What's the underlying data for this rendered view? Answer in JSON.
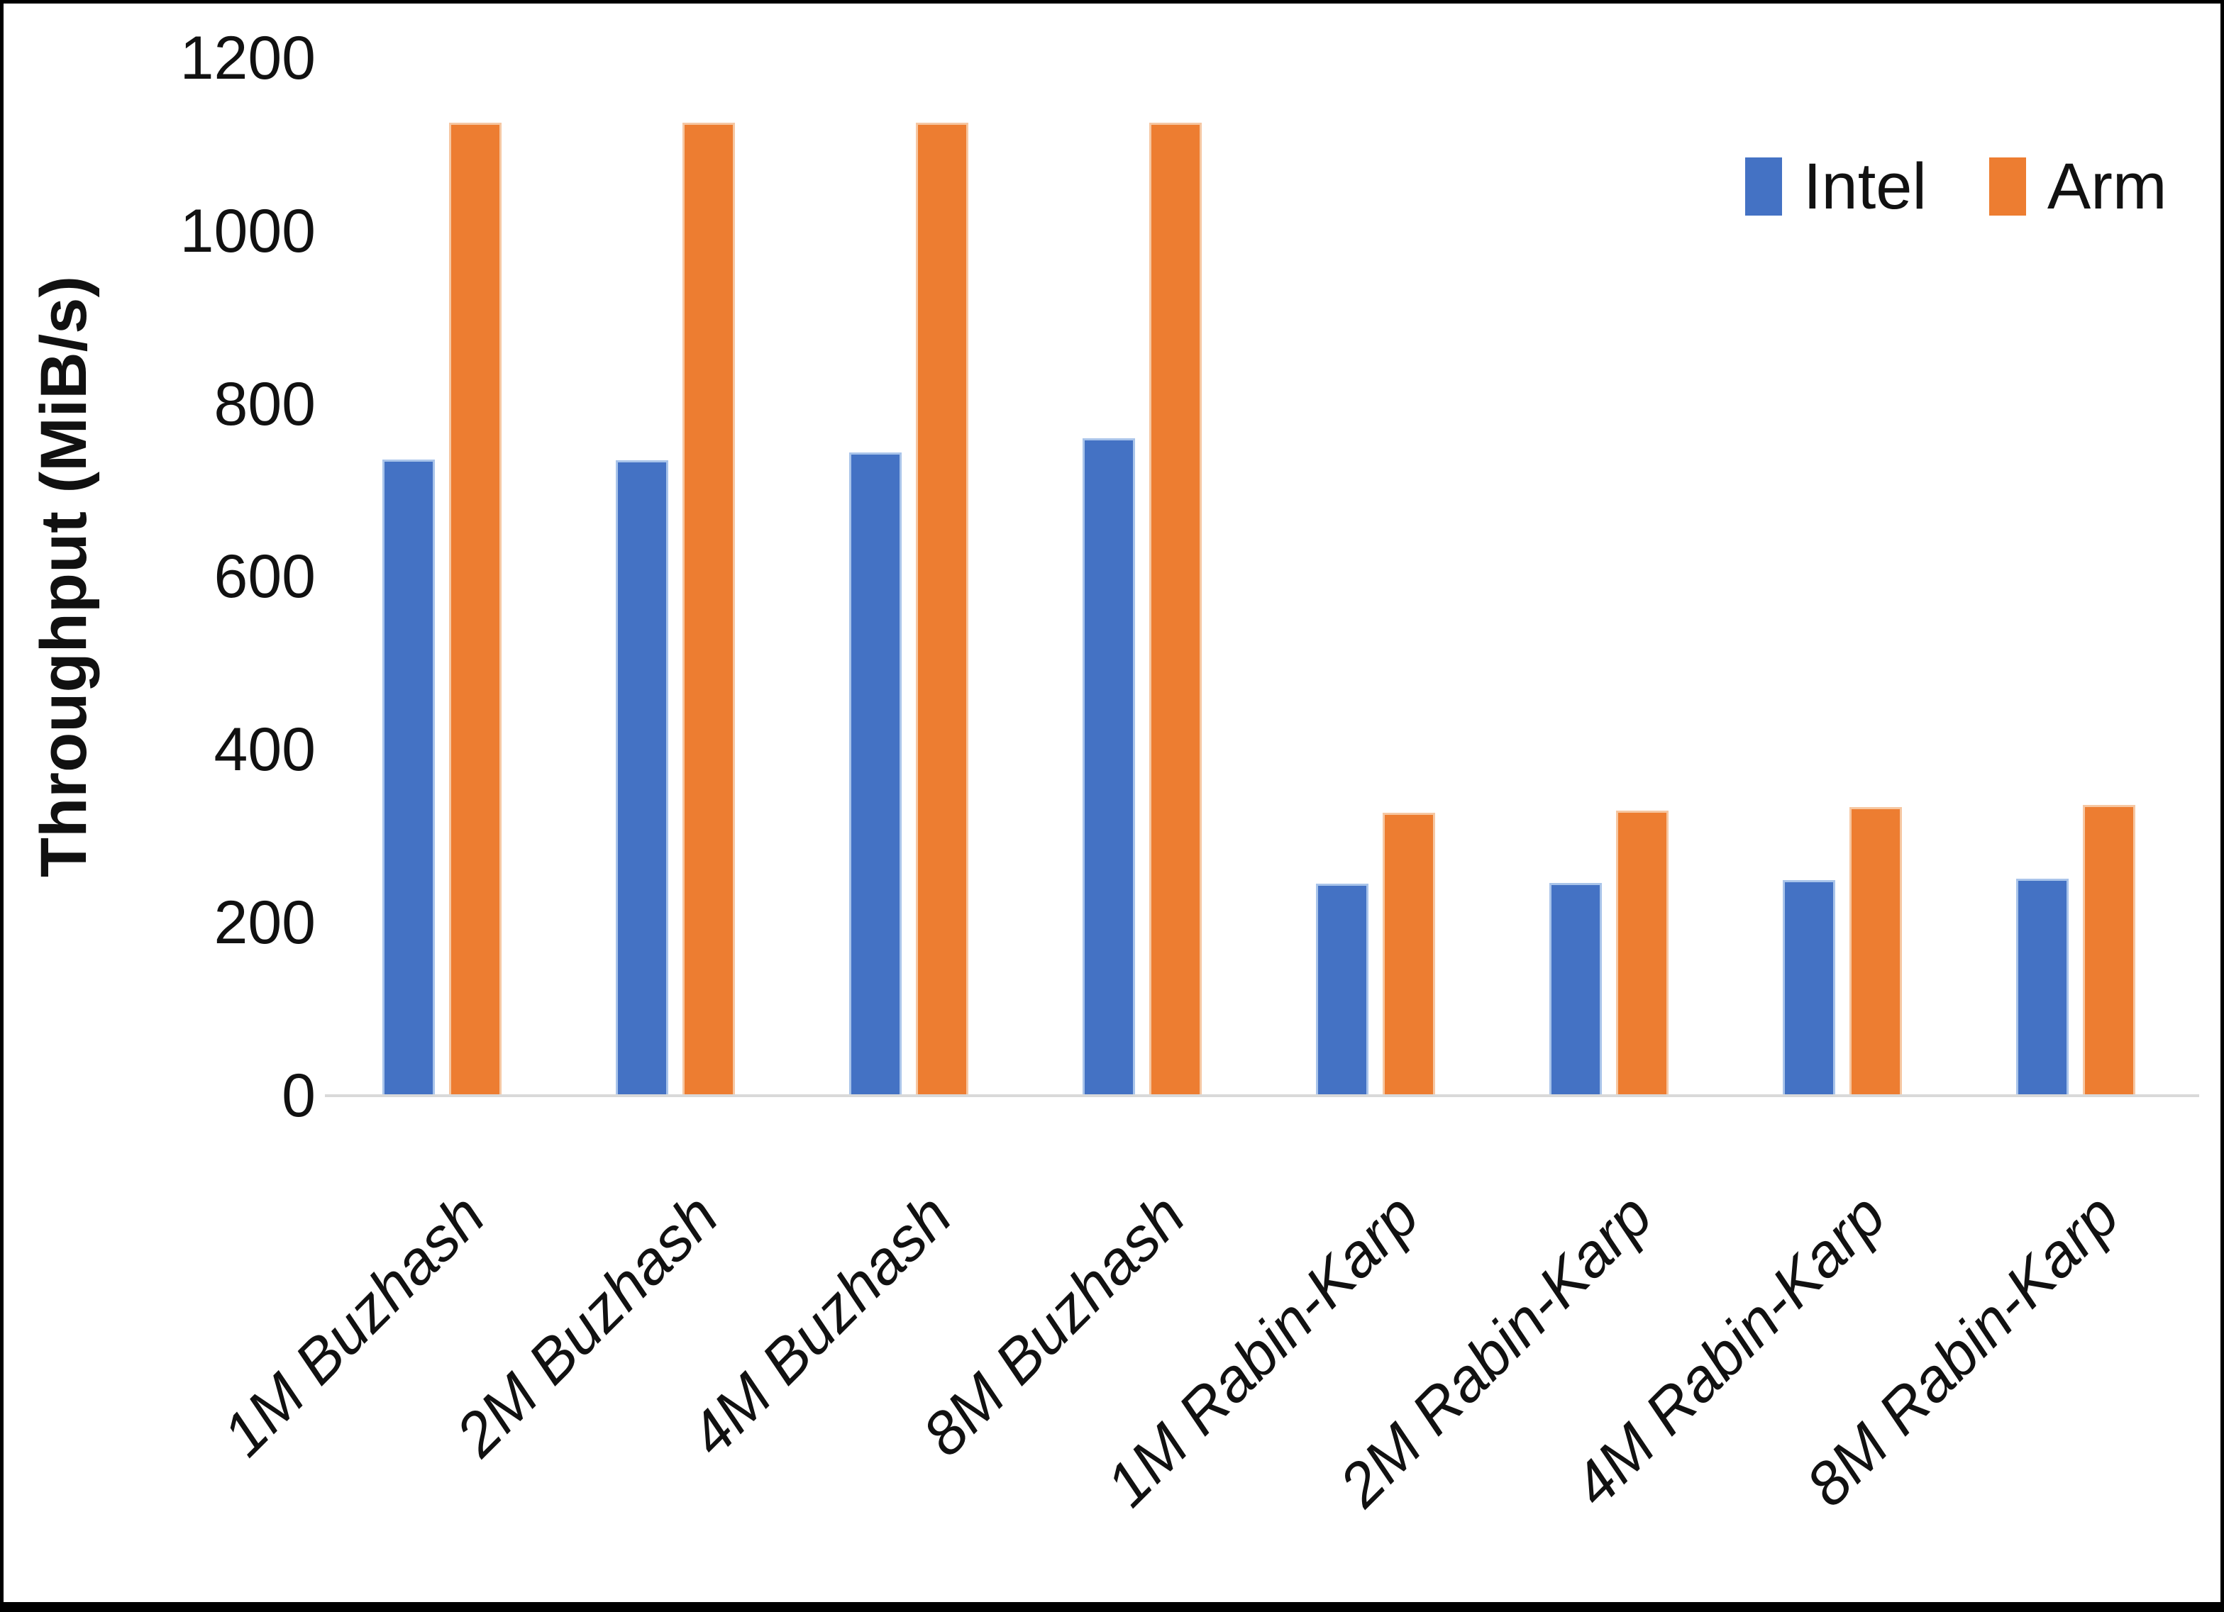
{
  "chart_data": {
    "type": "bar",
    "title": "",
    "xlabel": "",
    "ylabel": "Throughput (MiB/s)",
    "ylim": [
      0,
      1200
    ],
    "ytick_step": 200,
    "yticks": [
      "1200",
      "1000",
      "800",
      "600",
      "400",
      "200",
      "0"
    ],
    "categories": [
      "1M Buzhash",
      "2M Buzhash",
      "4M Buzhash",
      "8M Buzhash",
      "1M Rabin-Karp",
      "2M Rabin-Karp",
      "4M Rabin-Karp",
      "8M Rabin-Karp"
    ],
    "series": [
      {
        "name": "Intel",
        "color": "#4472C4",
        "values": [
          736,
          735,
          744,
          760,
          245,
          246,
          249,
          251
        ]
      },
      {
        "name": "Arm",
        "color": "#ED7D31",
        "values": [
          1125,
          1125,
          1125,
          1125,
          327,
          330,
          334,
          336
        ]
      }
    ],
    "legend_position": "top-right",
    "grid": false,
    "axis_line_color": "#D9D9D9"
  },
  "frame": {
    "background": "#FFFFFF",
    "border_color": "#000000",
    "text_color": "#111111"
  }
}
